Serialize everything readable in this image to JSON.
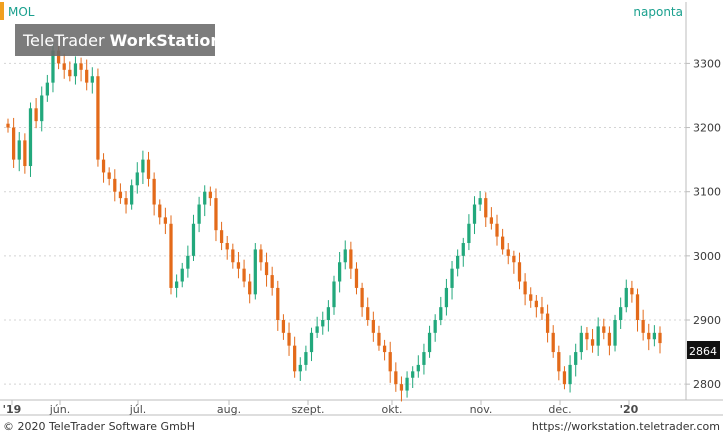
{
  "header": {
    "symbol": "MOL",
    "period": "naponta",
    "watermark_light": "TeleTrader ",
    "watermark_bold": "WorkStation"
  },
  "footer": {
    "copyright": "© 2020 TeleTrader Software GmbH",
    "url": "https://workstation.teletrader.com"
  },
  "price_tag": "2864",
  "colors": {
    "up": "#22a87c",
    "down": "#e36a1a",
    "accent": "#f0a020",
    "text_teal": "#1aa08e"
  },
  "chart_data": {
    "type": "candlestick",
    "ylim": [
      2780,
      3340
    ],
    "yticks": [
      2800,
      2900,
      3000,
      3100,
      3200,
      3300
    ],
    "xlabels": [
      "'19",
      "jún.",
      "júl.",
      "aug.",
      "szept.",
      "okt.",
      "nov.",
      "dec.",
      "'20"
    ],
    "last_price": 2864,
    "closes": [
      3200,
      3150,
      3180,
      3140,
      3230,
      3210,
      3250,
      3270,
      3320,
      3300,
      3290,
      3280,
      3300,
      3290,
      3270,
      3280,
      3150,
      3130,
      3120,
      3100,
      3090,
      3080,
      3110,
      3130,
      3150,
      3120,
      3080,
      3060,
      3050,
      2950,
      2960,
      2980,
      3000,
      3050,
      3080,
      3100,
      3090,
      3040,
      3020,
      3010,
      2990,
      2980,
      2960,
      2940,
      3010,
      2990,
      2970,
      2950,
      2900,
      2880,
      2860,
      2820,
      2830,
      2850,
      2880,
      2890,
      2900,
      2920,
      2960,
      2990,
      3010,
      2980,
      2950,
      2920,
      2900,
      2880,
      2860,
      2850,
      2820,
      2800,
      2790,
      2810,
      2820,
      2830,
      2850,
      2880,
      2900,
      2920,
      2950,
      2980,
      3000,
      3020,
      3050,
      3080,
      3090,
      3060,
      3050,
      3030,
      3010,
      3000,
      2990,
      2960,
      2940,
      2930,
      2920,
      2910,
      2880,
      2850,
      2820,
      2800,
      2830,
      2850,
      2880,
      2870,
      2860,
      2890,
      2880,
      2860,
      2900,
      2920,
      2950,
      2940,
      2900,
      2880,
      2870,
      2880,
      2864
    ]
  }
}
